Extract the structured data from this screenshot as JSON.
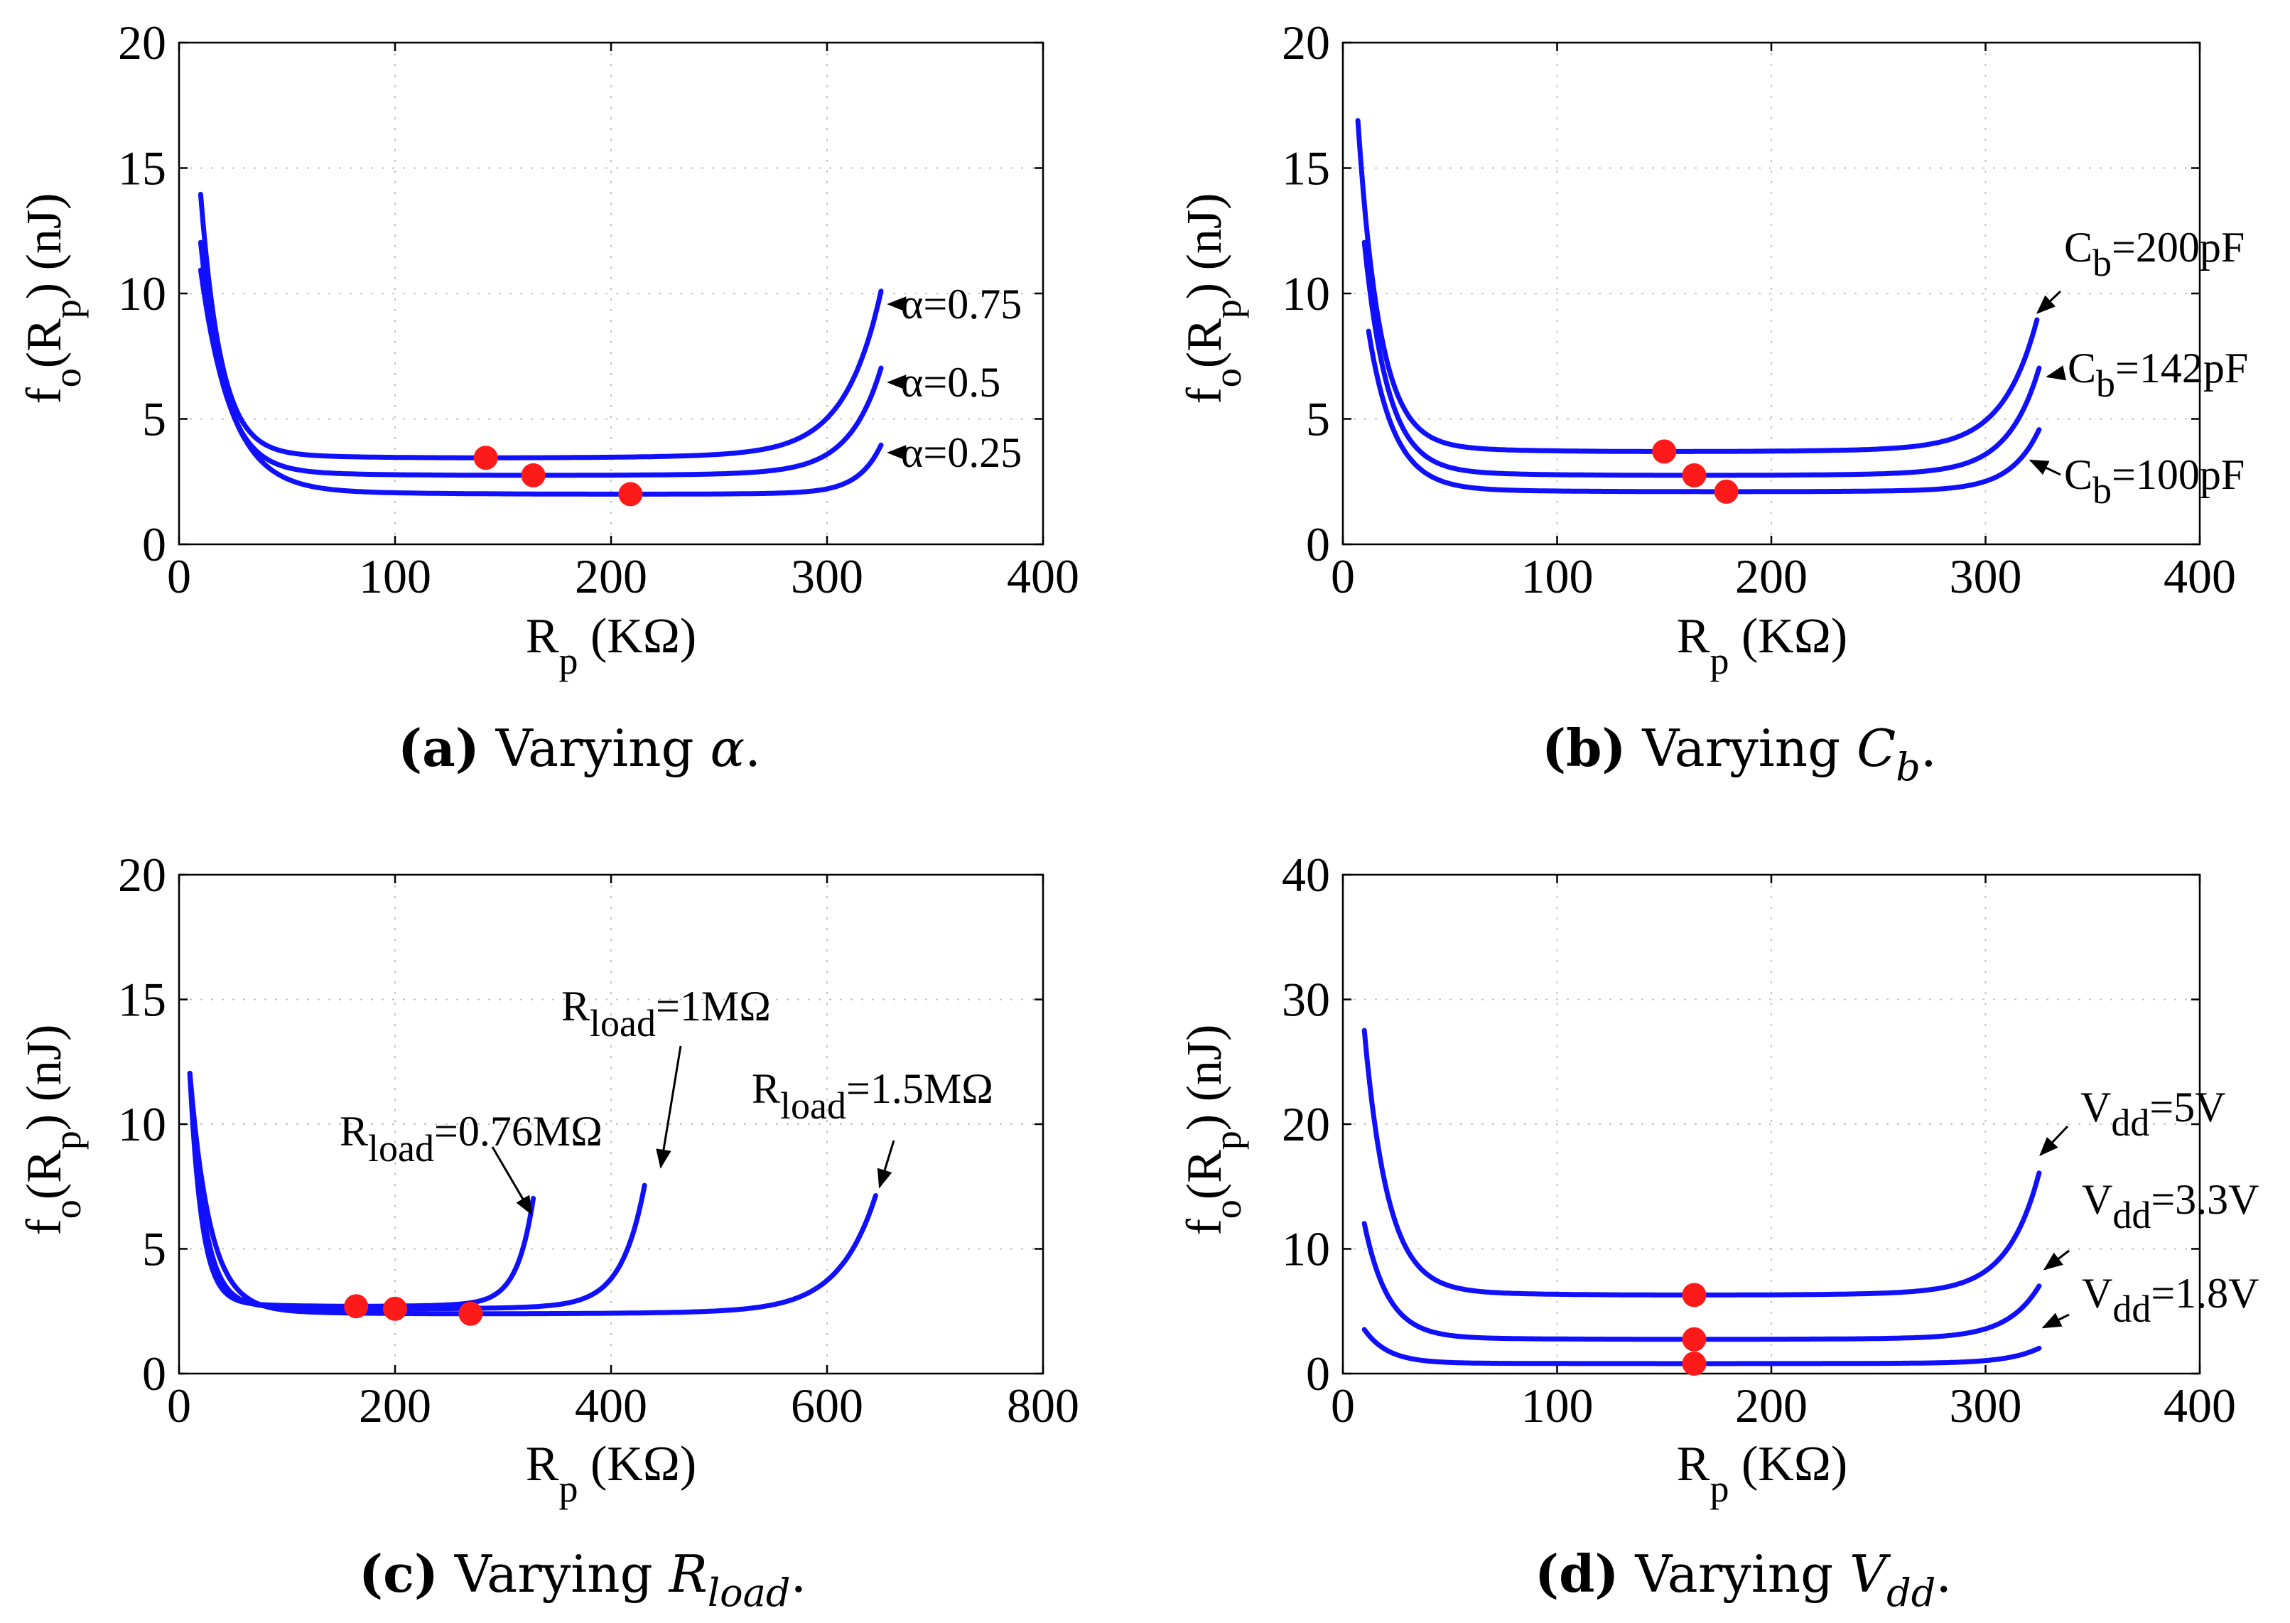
{
  "chart_data": [
    {
      "id": "a",
      "type": "line",
      "xlabel_base": "R",
      "xlabel_sub": "p",
      "xlabel_unit": " (KΩ)",
      "ylabel_base": "f",
      "ylabel_sub1": "o",
      "ylabel_mid": "(R",
      "ylabel_sub2": "p",
      "ylabel_unit": ") (nJ)",
      "xlim": [
        0,
        400
      ],
      "ylim": [
        0,
        20
      ],
      "xticks": [
        0,
        100,
        200,
        300,
        400
      ],
      "yticks": [
        0,
        5,
        10,
        15,
        20
      ],
      "caption_letter": "(a)",
      "caption_text": "Varying ",
      "caption_sym": "α",
      "caption_sub": "",
      "series": [
        {
          "name": "α=0.75",
          "x0": 10,
          "x_end": 325,
          "y0": 13.8,
          "y_min": 3.45,
          "y_end": 9.9,
          "min_x": 142
        },
        {
          "name": "α=0.5",
          "x0": 10,
          "x_end": 325,
          "y0": 11.9,
          "y_min": 2.75,
          "y_end": 6.9,
          "min_x": 164
        },
        {
          "name": "α=0.25",
          "x0": 10,
          "x_end": 325,
          "y0": 10.8,
          "y_min": 2.0,
          "y_end": 3.9,
          "min_x": 209
        }
      ],
      "annotations": [
        {
          "base": "α=0.75",
          "sub": "",
          "rest": ""
        },
        {
          "base": "α=0.5",
          "sub": "",
          "rest": ""
        },
        {
          "base": "α=0.25",
          "sub": "",
          "rest": ""
        }
      ]
    },
    {
      "id": "b",
      "type": "line",
      "xlabel_base": "R",
      "xlabel_sub": "p",
      "xlabel_unit": " (KΩ)",
      "ylabel_base": "f",
      "ylabel_sub1": "o",
      "ylabel_mid": "(R",
      "ylabel_sub2": "p",
      "ylabel_unit": ") (nJ)",
      "xlim": [
        0,
        400
      ],
      "ylim": [
        0,
        20
      ],
      "xticks": [
        0,
        100,
        200,
        300,
        400
      ],
      "yticks": [
        0,
        5,
        10,
        15,
        20
      ],
      "caption_letter": "(b)",
      "caption_text": "Varying ",
      "caption_sym": "C",
      "caption_sub": "b",
      "series": [
        {
          "name": "Cb=200pF",
          "x0": 7,
          "x_end": 324,
          "y0": 16.7,
          "y_min": 3.7,
          "y_end": 8.8,
          "min_x": 150
        },
        {
          "name": "Cb=142pF",
          "x0": 10,
          "x_end": 325,
          "y0": 11.9,
          "y_min": 2.75,
          "y_end": 6.9,
          "min_x": 164
        },
        {
          "name": "Cb=100pF",
          "x0": 12,
          "x_end": 325,
          "y0": 8.4,
          "y_min": 2.1,
          "y_end": 4.5,
          "min_x": 179
        }
      ],
      "annotations": [
        {
          "base": "C",
          "sub": "b",
          "rest": "=200pF"
        },
        {
          "base": "C",
          "sub": "b",
          "rest": "=142pF"
        },
        {
          "base": "C",
          "sub": "b",
          "rest": "=100pF"
        }
      ]
    },
    {
      "id": "c",
      "type": "line",
      "xlabel_base": "R",
      "xlabel_sub": "p",
      "xlabel_unit": " (KΩ)",
      "ylabel_base": "f",
      "ylabel_sub1": "o",
      "ylabel_mid": "(R",
      "ylabel_sub2": "p",
      "ylabel_unit": ") (nJ)",
      "xlim": [
        0,
        800
      ],
      "ylim": [
        0,
        20
      ],
      "xticks": [
        0,
        200,
        400,
        600,
        800
      ],
      "yticks": [
        0,
        5,
        10,
        15,
        20
      ],
      "caption_letter": "(c)",
      "caption_text": "Varying ",
      "caption_sym": "R",
      "caption_sub": "load",
      "series": [
        {
          "name": "Rload=0.76MΩ",
          "x0": 10,
          "x_end": 328,
          "y0": 11.9,
          "y_min": 2.7,
          "y_end": 6.9,
          "min_x": 164
        },
        {
          "name": "Rload=1MΩ",
          "x0": 10,
          "x_end": 431,
          "y0": 11.9,
          "y_min": 2.6,
          "y_end": 7.4,
          "min_x": 200
        },
        {
          "name": "Rload=1.5MΩ",
          "x0": 10,
          "x_end": 645,
          "y0": 11.9,
          "y_min": 2.4,
          "y_end": 7.0,
          "min_x": 270
        }
      ],
      "annotations": [
        {
          "base": "R",
          "sub": "load",
          "rest": "=0.76MΩ"
        },
        {
          "base": "R",
          "sub": "load",
          "rest": "=1MΩ"
        },
        {
          "base": "R",
          "sub": "load",
          "rest": "=1.5MΩ"
        }
      ]
    },
    {
      "id": "d",
      "type": "line",
      "xlabel_base": "R",
      "xlabel_sub": "p",
      "xlabel_unit": " (KΩ)",
      "ylabel_base": "f",
      "ylabel_sub1": "o",
      "ylabel_mid": "(R",
      "ylabel_sub2": "p",
      "ylabel_unit": ") (nJ)",
      "xlim": [
        0,
        400
      ],
      "ylim": [
        0,
        40
      ],
      "xticks": [
        0,
        100,
        200,
        300,
        400
      ],
      "yticks": [
        0,
        10,
        20,
        30,
        40
      ],
      "caption_letter": "(d)",
      "caption_text": "Varying ",
      "caption_sym": "V",
      "caption_sub": "dd",
      "series": [
        {
          "name": "Vdd=5V",
          "x0": 10,
          "x_end": 325,
          "y0": 27.2,
          "y_min": 6.3,
          "y_end": 15.8,
          "min_x": 164
        },
        {
          "name": "Vdd=3.3V",
          "x0": 10,
          "x_end": 325,
          "y0": 11.9,
          "y_min": 2.75,
          "y_end": 6.9,
          "min_x": 164
        },
        {
          "name": "Vdd=1.8V",
          "x0": 10,
          "x_end": 325,
          "y0": 3.5,
          "y_min": 0.8,
          "y_end": 2.0,
          "min_x": 164
        }
      ],
      "annotations": [
        {
          "base": "V",
          "sub": "dd",
          "rest": "=5V"
        },
        {
          "base": "V",
          "sub": "dd",
          "rest": "=3.3V"
        },
        {
          "base": "V",
          "sub": "dd",
          "rest": "=1.8V"
        }
      ]
    }
  ]
}
